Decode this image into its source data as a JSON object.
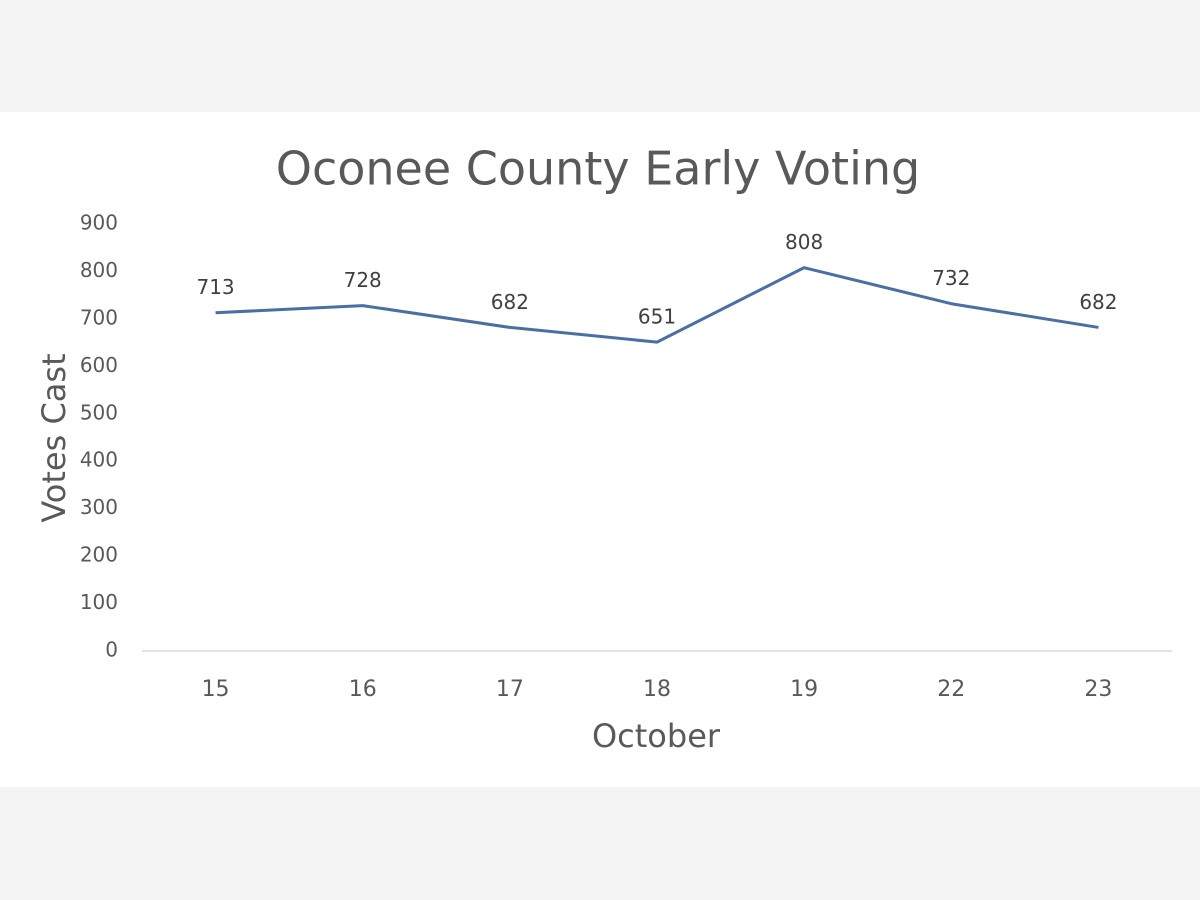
{
  "chart_data": {
    "type": "line",
    "title": "Oconee County Early Voting",
    "x_label": "October",
    "y_label": "Votes Cast",
    "categories": [
      "15",
      "16",
      "17",
      "18",
      "19",
      "22",
      "23"
    ],
    "series": [
      {
        "name": "Votes Cast",
        "color": "#4a6fa5",
        "values": [
          713,
          728,
          682,
          651,
          808,
          732,
          682
        ]
      }
    ],
    "ylim": [
      0,
      900
    ],
    "yticks": [
      0,
      100,
      200,
      300,
      400,
      500,
      600,
      700,
      800,
      900
    ],
    "grid": false,
    "legend": false,
    "data_labels": true
  }
}
